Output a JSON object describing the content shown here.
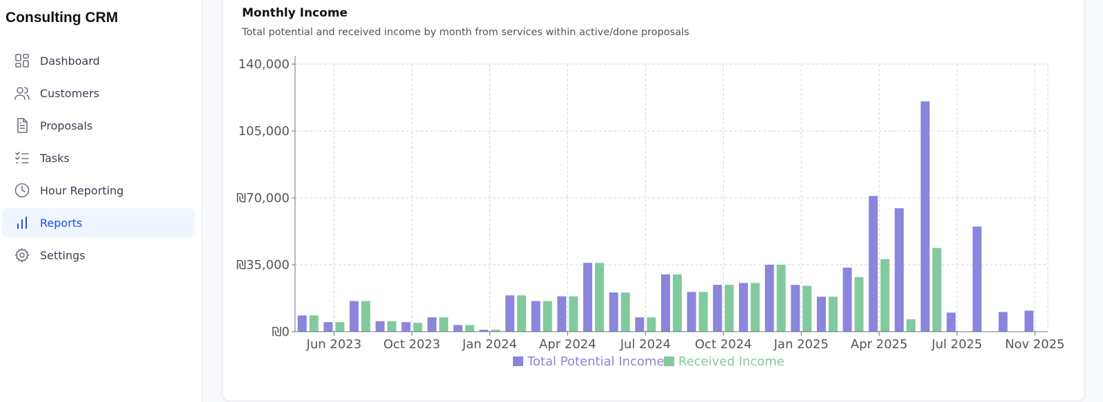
{
  "app": {
    "title": "Consulting CRM"
  },
  "sidebar": {
    "items": [
      {
        "label": "Dashboard",
        "icon": "dashboard-icon",
        "active": false
      },
      {
        "label": "Customers",
        "icon": "users-icon",
        "active": false
      },
      {
        "label": "Proposals",
        "icon": "document-icon",
        "active": false
      },
      {
        "label": "Tasks",
        "icon": "checklist-icon",
        "active": false
      },
      {
        "label": "Hour Reporting",
        "icon": "clock-icon",
        "active": false
      },
      {
        "label": "Reports",
        "icon": "bar-chart-icon",
        "active": true
      },
      {
        "label": "Settings",
        "icon": "gear-icon",
        "active": false
      }
    ]
  },
  "report": {
    "title": "Monthly Income",
    "subtitle": "Total potential and received income by month from services within active/done proposals"
  },
  "colors": {
    "accent": "#1d4ed8",
    "active_bg": "#eff6ff",
    "potential": "#8b85db",
    "received": "#82ca9d"
  },
  "chart_data": {
    "type": "bar",
    "ylim": [
      0,
      140000
    ],
    "yticks": [
      0,
      35000,
      70000,
      105000,
      140000
    ],
    "ytick_labels": [
      "₪0",
      "₪35,000",
      "₪70,000",
      "105,000",
      "140,000"
    ],
    "xtick_labels": [
      "Jun 2023",
      "Oct 2023",
      "Jan 2024",
      "Apr 2024",
      "Jul 2024",
      "Oct 2024",
      "Jan 2025",
      "Apr 2025",
      "Jul 2025",
      "Nov 2025"
    ],
    "xtick_positions": [
      1,
      4,
      7,
      10,
      13,
      16,
      19,
      22,
      25,
      28
    ],
    "grid": true,
    "legend": "bottom-center",
    "series": [
      {
        "name": "Total Potential Income",
        "values": [
          8500,
          5000,
          16000,
          5500,
          5000,
          7500,
          3500,
          1000,
          19000,
          16000,
          18500,
          36000,
          20500,
          7500,
          30000,
          20800,
          24500,
          25500,
          35000,
          24500,
          18300,
          33500,
          71000,
          64600,
          120500,
          10000,
          55000,
          10300,
          11000
        ]
      },
      {
        "name": "Received Income",
        "values": [
          8500,
          5000,
          16000,
          5500,
          4600,
          7500,
          3500,
          1000,
          19000,
          16000,
          18500,
          36000,
          20500,
          7500,
          30000,
          20800,
          24500,
          25500,
          35000,
          24000,
          18300,
          28500,
          38000,
          6500,
          43800,
          0,
          0,
          0,
          0
        ]
      }
    ]
  }
}
